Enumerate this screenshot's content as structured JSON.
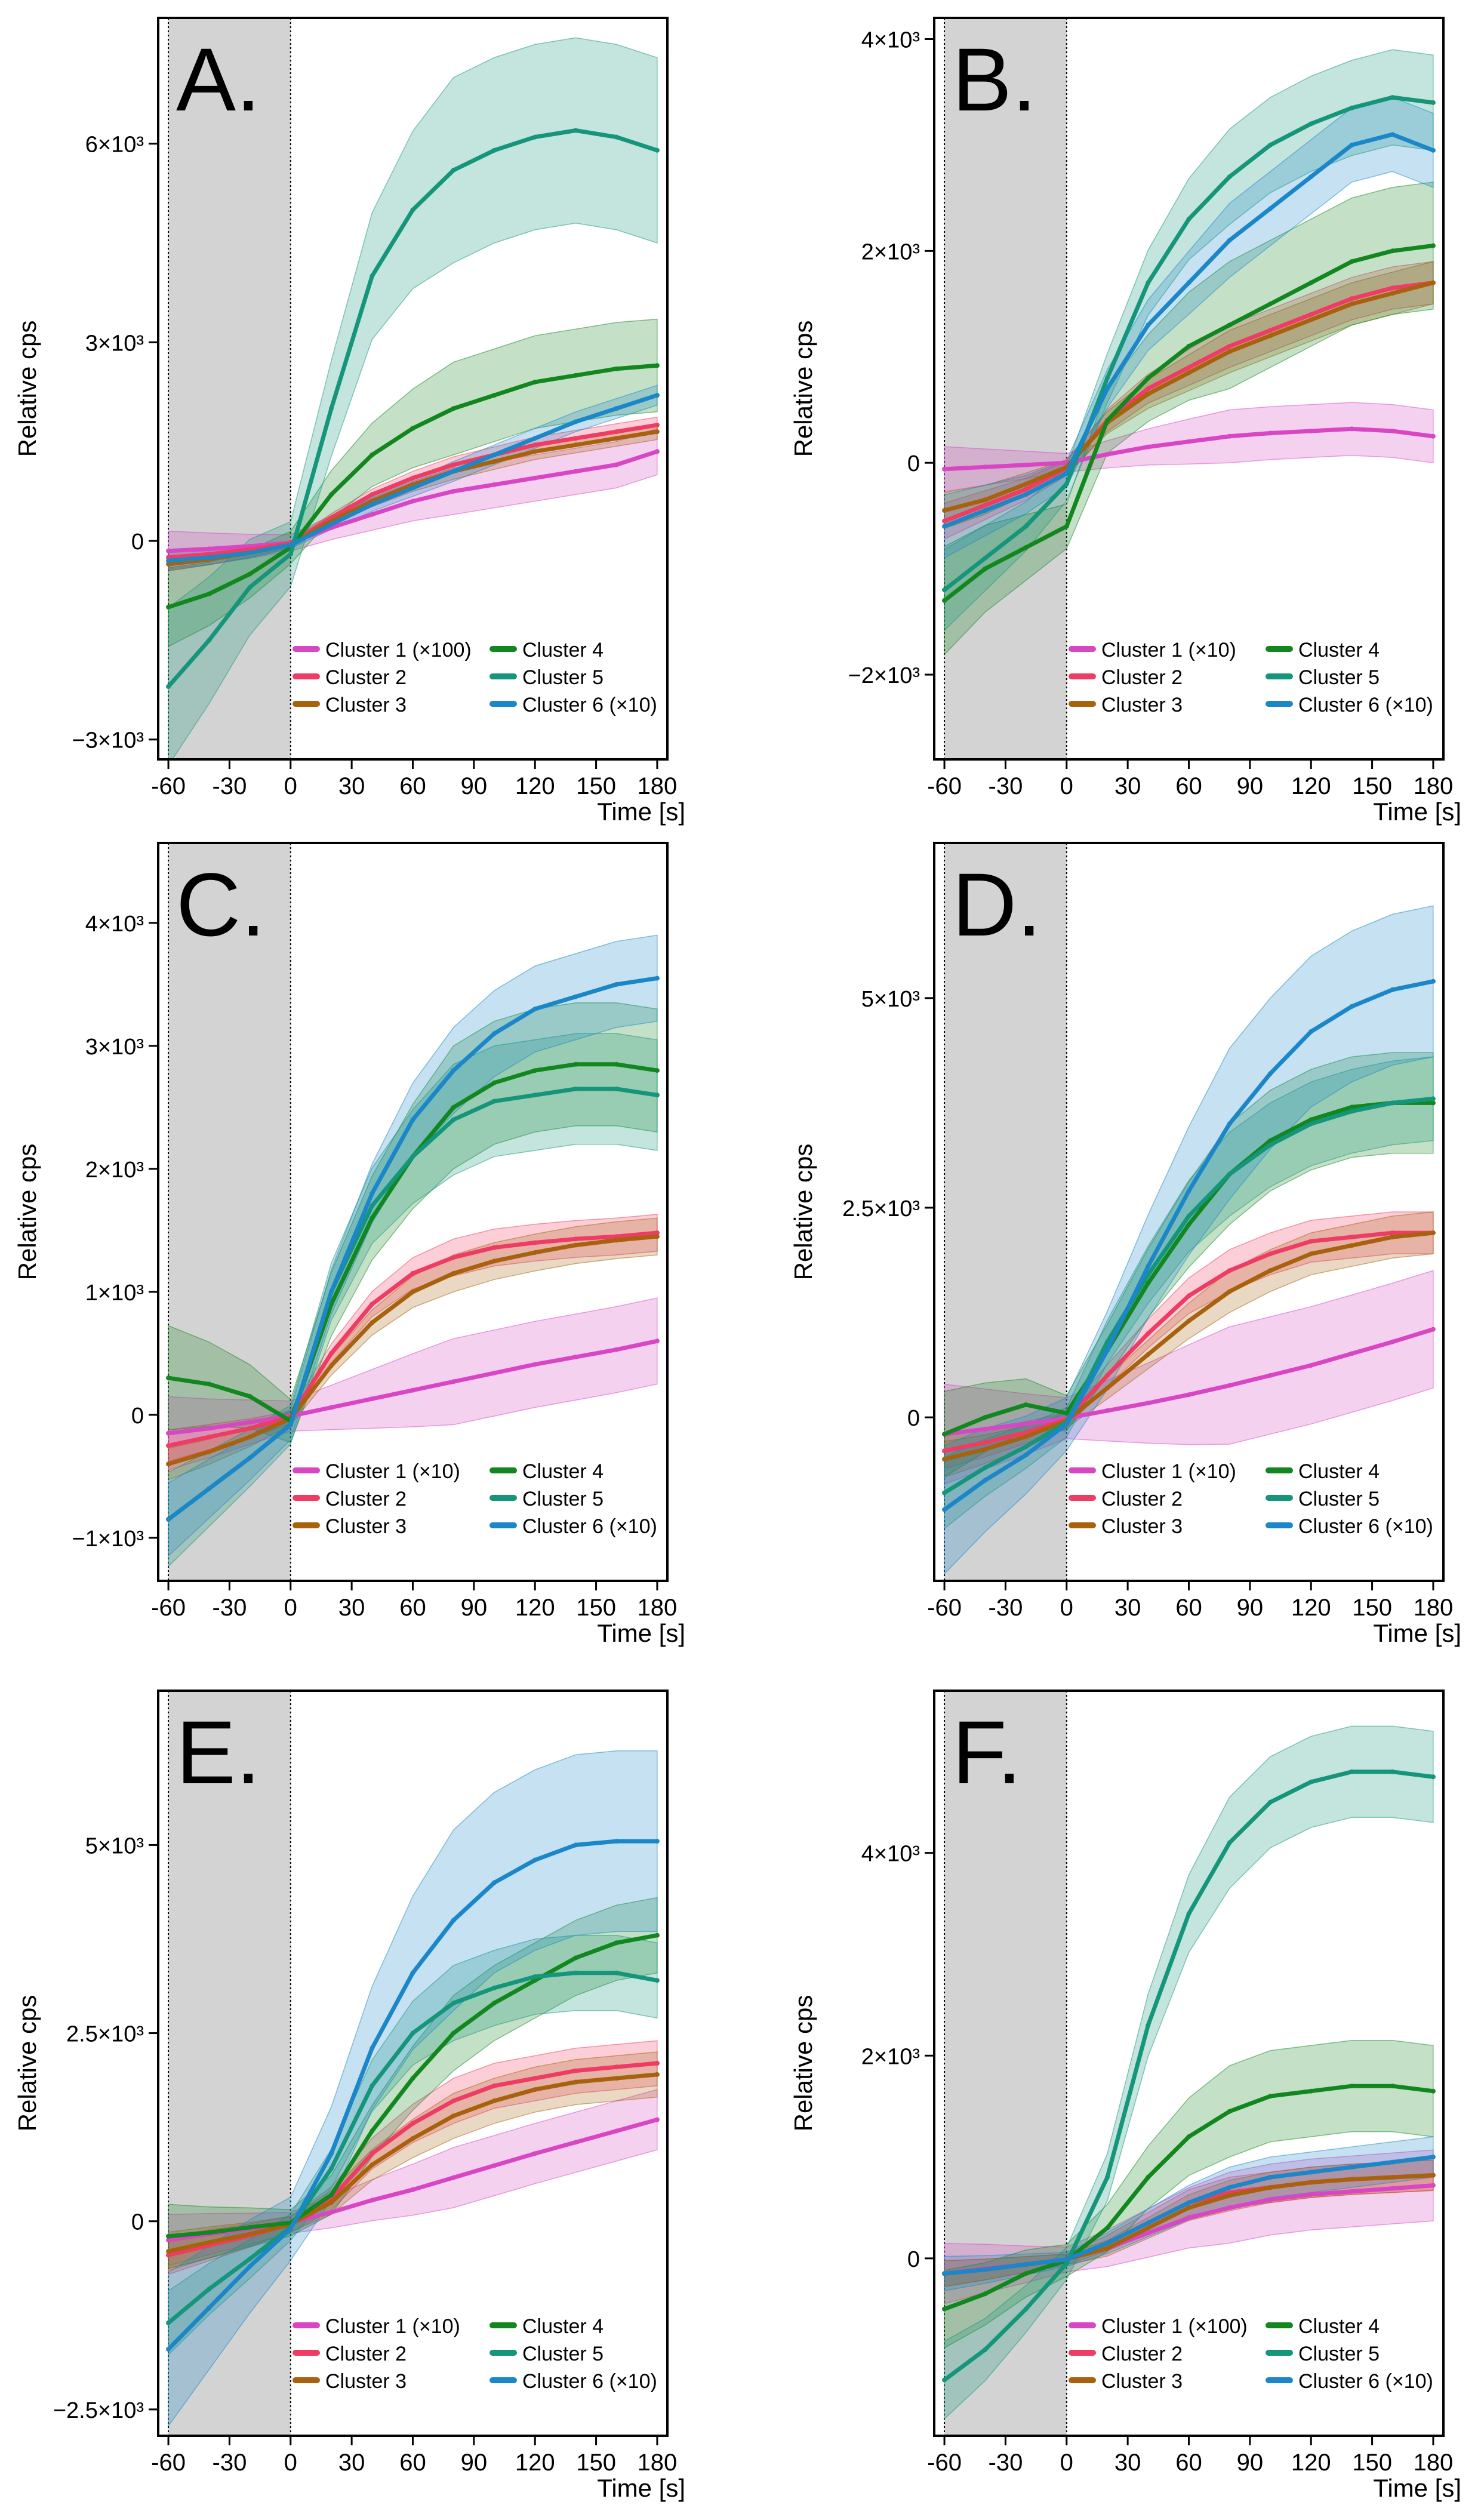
{
  "chart_data": [
    {
      "panel_label": "A.",
      "type": "line",
      "ylabel": "Relative cps",
      "xlabel": "Time [s]",
      "x_ticks": [
        "-60",
        "-30",
        "0",
        "30",
        "60",
        "90",
        "120",
        "150",
        "180"
      ],
      "x_tick_values": [
        -60,
        -30,
        0,
        30,
        60,
        90,
        120,
        150,
        180
      ],
      "xlim": [
        -65,
        185
      ],
      "y_ticks": [
        "−3×10³",
        "0",
        "3×10³",
        "6×10³"
      ],
      "y_tick_values": [
        -3000,
        0,
        3000,
        6000
      ],
      "ylim": [
        -3300,
        7900
      ],
      "shaded_region": [
        -60,
        0
      ],
      "legend_placement": "bottom-center",
      "x": [
        -60,
        -40,
        -20,
        0,
        20,
        40,
        60,
        80,
        100,
        120,
        140,
        160,
        180
      ],
      "series": [
        {
          "name": "Cluster 1 (×100)",
          "color": "#d946c4",
          "values": [
            -150,
            -120,
            -80,
            -30,
            200,
            400,
            600,
            750,
            850,
            950,
            1050,
            1150,
            1350
          ],
          "band": 350
        },
        {
          "name": "Cluster 2",
          "color": "#ee3c64",
          "values": [
            -250,
            -200,
            -130,
            -40,
            350,
            700,
            950,
            1150,
            1300,
            1450,
            1550,
            1650,
            1750
          ],
          "band": 120
        },
        {
          "name": "Cluster 3",
          "color": "#a8620e",
          "values": [
            -350,
            -280,
            -180,
            -60,
            300,
            600,
            850,
            1050,
            1200,
            1350,
            1450,
            1550,
            1650
          ],
          "band": 120
        },
        {
          "name": "Cluster 4",
          "color": "#13871f",
          "values": [
            -1000,
            -800,
            -500,
            -100,
            700,
            1300,
            1700,
            2000,
            2200,
            2400,
            2500,
            2600,
            2650
          ],
          "band": 700
        },
        {
          "name": "Cluster 5",
          "color": "#15957a",
          "values": [
            -2200,
            -1500,
            -700,
            -200,
            2000,
            4000,
            5000,
            5600,
            5900,
            6100,
            6200,
            6100,
            5900
          ],
          "band": 1400
        },
        {
          "name": "Cluster 6 (×10)",
          "color": "#1b86c8",
          "values": [
            -300,
            -250,
            -180,
            -60,
            250,
            550,
            800,
            1050,
            1300,
            1550,
            1800,
            2000,
            2200
          ],
          "band": 150
        }
      ]
    },
    {
      "panel_label": "B.",
      "type": "line",
      "ylabel": "Relative cps",
      "xlabel": "Time [s]",
      "x_ticks": [
        "-60",
        "-30",
        "0",
        "30",
        "60",
        "90",
        "120",
        "150",
        "180"
      ],
      "x_tick_values": [
        -60,
        -30,
        0,
        30,
        60,
        90,
        120,
        150,
        180
      ],
      "xlim": [
        -65,
        185
      ],
      "y_ticks": [
        "−2×10³",
        "0",
        "2×10³",
        "4×10³"
      ],
      "y_tick_values": [
        -2000,
        0,
        2000,
        4000
      ],
      "ylim": [
        -2800,
        4200
      ],
      "shaded_region": [
        -60,
        0
      ],
      "legend_placement": "bottom-center",
      "x": [
        -60,
        -40,
        -20,
        0,
        20,
        40,
        60,
        80,
        100,
        120,
        140,
        160,
        180
      ],
      "series": [
        {
          "name": "Cluster 1 (×10)",
          "color": "#d946c4",
          "values": [
            -60,
            -40,
            -20,
            0,
            80,
            150,
            200,
            250,
            280,
            300,
            320,
            300,
            250
          ],
          "band": 250
        },
        {
          "name": "Cluster 2",
          "color": "#ee3c64",
          "values": [
            -550,
            -400,
            -250,
            -50,
            400,
            700,
            900,
            1100,
            1250,
            1400,
            1550,
            1650,
            1700
          ],
          "band": 200
        },
        {
          "name": "Cluster 3",
          "color": "#a8620e",
          "values": [
            -450,
            -350,
            -200,
            -40,
            380,
            650,
            850,
            1050,
            1200,
            1350,
            1500,
            1600,
            1700
          ],
          "band": 200
        },
        {
          "name": "Cluster 4",
          "color": "#13871f",
          "values": [
            -1300,
            -1000,
            -800,
            -600,
            400,
            800,
            1100,
            1300,
            1500,
            1700,
            1900,
            2000,
            2050
          ],
          "band": 600
        },
        {
          "name": "Cluster 5",
          "color": "#15957a",
          "values": [
            -1200,
            -900,
            -600,
            -200,
            800,
            1700,
            2300,
            2700,
            3000,
            3200,
            3350,
            3450,
            3400
          ],
          "band": 450
        },
        {
          "name": "Cluster 6 (×10)",
          "color": "#1b86c8",
          "values": [
            -600,
            -450,
            -300,
            -100,
            700,
            1300,
            1700,
            2100,
            2400,
            2700,
            3000,
            3100,
            2950
          ],
          "band": 350
        }
      ]
    },
    {
      "panel_label": "C.",
      "type": "line",
      "ylabel": "Relative cps",
      "xlabel": "Time [s]",
      "x_ticks": [
        "-60",
        "-30",
        "0",
        "30",
        "60",
        "90",
        "120",
        "150",
        "180"
      ],
      "x_tick_values": [
        -60,
        -30,
        0,
        30,
        60,
        90,
        120,
        150,
        180
      ],
      "xlim": [
        -65,
        185
      ],
      "y_ticks": [
        "−1×10³",
        "0",
        "1×10³",
        "2×10³",
        "3×10³",
        "4×10³"
      ],
      "y_tick_values": [
        -1000,
        0,
        1000,
        2000,
        3000,
        4000
      ],
      "ylim": [
        -1350,
        4650
      ],
      "shaded_region": [
        -60,
        0
      ],
      "legend_placement": "bottom-center",
      "x": [
        -60,
        -40,
        -20,
        0,
        20,
        40,
        60,
        80,
        100,
        120,
        140,
        160,
        180
      ],
      "series": [
        {
          "name": "Cluster 1 (×10)",
          "color": "#d946c4",
          "values": [
            -150,
            -110,
            -60,
            -10,
            60,
            130,
            200,
            270,
            340,
            410,
            470,
            530,
            600
          ],
          "band": 350
        },
        {
          "name": "Cluster 2",
          "color": "#ee3c64",
          "values": [
            -250,
            -180,
            -110,
            -20,
            500,
            900,
            1150,
            1280,
            1360,
            1400,
            1430,
            1450,
            1480
          ],
          "band": 150
        },
        {
          "name": "Cluster 3",
          "color": "#a8620e",
          "values": [
            -400,
            -300,
            -180,
            -30,
            400,
            750,
            1000,
            1150,
            1250,
            1320,
            1380,
            1420,
            1450
          ],
          "band": 150
        },
        {
          "name": "Cluster 4",
          "color": "#13871f",
          "values": [
            300,
            250,
            150,
            -50,
            900,
            1600,
            2100,
            2500,
            2700,
            2800,
            2850,
            2850,
            2800
          ],
          "band": 500
        },
        {
          "name": "Cluster 5",
          "color": "#15957a",
          "values": [
            -850,
            -600,
            -350,
            -80,
            1000,
            1700,
            2100,
            2400,
            2550,
            2600,
            2650,
            2650,
            2600
          ],
          "band": 450
        },
        {
          "name": "Cluster 6 (×10)",
          "color": "#1b86c8",
          "values": [
            -850,
            -600,
            -350,
            -80,
            1000,
            1800,
            2400,
            2800,
            3100,
            3300,
            3400,
            3500,
            3550
          ],
          "band": 350
        }
      ]
    },
    {
      "panel_label": "D.",
      "type": "line",
      "ylabel": "Relative cps",
      "xlabel": "Time [s]",
      "x_ticks": [
        "-60",
        "-30",
        "0",
        "30",
        "60",
        "90",
        "120",
        "150",
        "180"
      ],
      "x_tick_values": [
        -60,
        -30,
        0,
        30,
        60,
        90,
        120,
        150,
        180
      ],
      "xlim": [
        -65,
        185
      ],
      "y_ticks": [
        "0",
        "2.5×10³",
        "5×10³"
      ],
      "y_tick_values": [
        0,
        2500,
        5000
      ],
      "ylim": [
        -1950,
        6850
      ],
      "shaded_region": [
        -60,
        0
      ],
      "legend_placement": "bottom-center",
      "x": [
        -60,
        -40,
        -20,
        0,
        20,
        40,
        60,
        80,
        100,
        120,
        140,
        160,
        180
      ],
      "series": [
        {
          "name": "Cluster 1 (×10)",
          "color": "#d946c4",
          "values": [
            -200,
            -140,
            -80,
            -10,
            80,
            170,
            270,
            380,
            500,
            620,
            760,
            900,
            1050
          ],
          "band": 700
        },
        {
          "name": "Cluster 2",
          "color": "#ee3c64",
          "values": [
            -400,
            -300,
            -180,
            -30,
            500,
            1000,
            1450,
            1750,
            1950,
            2100,
            2150,
            2200,
            2200
          ],
          "band": 250
        },
        {
          "name": "Cluster 3",
          "color": "#a8620e",
          "values": [
            -500,
            -380,
            -230,
            -40,
            350,
            750,
            1150,
            1500,
            1750,
            1950,
            2050,
            2150,
            2200
          ],
          "band": 250
        },
        {
          "name": "Cluster 4",
          "color": "#13871f",
          "values": [
            -200,
            0,
            150,
            50,
            800,
            1600,
            2300,
            2900,
            3300,
            3550,
            3700,
            3750,
            3750
          ],
          "band": 600
        },
        {
          "name": "Cluster 5",
          "color": "#15957a",
          "values": [
            -900,
            -600,
            -350,
            -60,
            900,
            1700,
            2400,
            2900,
            3250,
            3500,
            3650,
            3750,
            3800
          ],
          "band": 500
        },
        {
          "name": "Cluster 6 (×10)",
          "color": "#1b86c8",
          "values": [
            -1100,
            -750,
            -450,
            -80,
            800,
            1800,
            2700,
            3500,
            4100,
            4600,
            4900,
            5100,
            5200
          ],
          "band": 900
        }
      ]
    },
    {
      "panel_label": "E.",
      "type": "line",
      "ylabel": "Relative cps",
      "xlabel": "Time [s]",
      "x_ticks": [
        "-60",
        "-30",
        "0",
        "30",
        "60",
        "90",
        "120",
        "150",
        "180"
      ],
      "x_tick_values": [
        -60,
        -30,
        0,
        30,
        60,
        90,
        120,
        150,
        180
      ],
      "xlim": [
        -65,
        185
      ],
      "y_ticks": [
        "−2.5×10³",
        "0",
        "2.5×10³",
        "5×10³"
      ],
      "y_tick_values": [
        -2500,
        0,
        2500,
        5000
      ],
      "ylim": [
        -2850,
        7050
      ],
      "shaded_region": [
        -60,
        0
      ],
      "legend_placement": "bottom-center",
      "x": [
        -60,
        -40,
        -20,
        0,
        20,
        40,
        60,
        80,
        100,
        120,
        140,
        160,
        180
      ],
      "series": [
        {
          "name": "Cluster 1 (×10)",
          "color": "#d946c4",
          "values": [
            -250,
            -170,
            -100,
            -20,
            120,
            280,
            420,
            580,
            740,
            900,
            1050,
            1200,
            1350
          ],
          "band": 400
        },
        {
          "name": "Cluster 2",
          "color": "#ee3c64",
          "values": [
            -450,
            -320,
            -190,
            -40,
            300,
            900,
            1300,
            1600,
            1800,
            1900,
            2000,
            2050,
            2100
          ],
          "band": 300
        },
        {
          "name": "Cluster 3",
          "color": "#a8620e",
          "values": [
            -400,
            -280,
            -170,
            -40,
            250,
            750,
            1100,
            1400,
            1600,
            1750,
            1850,
            1900,
            1950
          ],
          "band": 300
        },
        {
          "name": "Cluster 4",
          "color": "#13871f",
          "values": [
            -200,
            -150,
            -80,
            -20,
            350,
            1200,
            1900,
            2500,
            2900,
            3200,
            3500,
            3700,
            3800
          ],
          "band": 500
        },
        {
          "name": "Cluster 5",
          "color": "#15957a",
          "values": [
            -1350,
            -900,
            -500,
            -80,
            700,
            1800,
            2500,
            2900,
            3100,
            3250,
            3300,
            3300,
            3200
          ],
          "band": 500
        },
        {
          "name": "Cluster 6 (×10)",
          "color": "#1b86c8",
          "values": [
            -1700,
            -1150,
            -600,
            -100,
            900,
            2300,
            3300,
            4000,
            4500,
            4800,
            5000,
            5050,
            5050
          ],
          "band": 1200
        }
      ]
    },
    {
      "panel_label": "F.",
      "type": "line",
      "ylabel": "Relative cps",
      "xlabel": "Time [s]",
      "x_ticks": [
        "-60",
        "-30",
        "0",
        "30",
        "60",
        "90",
        "120",
        "150",
        "180"
      ],
      "x_tick_values": [
        -60,
        -30,
        0,
        30,
        60,
        90,
        120,
        150,
        180
      ],
      "xlim": [
        -65,
        185
      ],
      "y_ticks": [
        "0",
        "2×10³",
        "4×10³"
      ],
      "y_tick_values": [
        0,
        2000,
        4000
      ],
      "ylim": [
        -1750,
        5600
      ],
      "shaded_region": [
        -60,
        0
      ],
      "legend_placement": "bottom-center",
      "x": [
        -60,
        -40,
        -20,
        0,
        20,
        40,
        60,
        80,
        100,
        120,
        140,
        160,
        180
      ],
      "series": [
        {
          "name": "Cluster 1 (×100)",
          "color": "#d946c4",
          "values": [
            -150,
            -100,
            -60,
            -10,
            100,
            250,
            400,
            500,
            580,
            630,
            660,
            690,
            720
          ],
          "band": 350
        },
        {
          "name": "Cluster 2",
          "color": "#ee3c64",
          "values": [
            -150,
            -110,
            -60,
            -10,
            150,
            350,
            550,
            650,
            700,
            750,
            780,
            800,
            820
          ],
          "band": 150
        },
        {
          "name": "Cluster 3",
          "color": "#a8620e",
          "values": [
            -150,
            -110,
            -60,
            -10,
            100,
            300,
            500,
            620,
            700,
            750,
            780,
            800,
            820
          ],
          "band": 150
        },
        {
          "name": "Cluster 4",
          "color": "#13871f",
          "values": [
            -500,
            -350,
            -150,
            -20,
            300,
            800,
            1200,
            1450,
            1600,
            1650,
            1700,
            1700,
            1650
          ],
          "band": 450
        },
        {
          "name": "Cluster 5",
          "color": "#15957a",
          "values": [
            -1200,
            -900,
            -500,
            -50,
            800,
            2300,
            3400,
            4100,
            4500,
            4700,
            4800,
            4800,
            4750
          ],
          "band": 450
        },
        {
          "name": "Cluster 6 (×10)",
          "color": "#1b86c8",
          "values": [
            -150,
            -110,
            -60,
            -10,
            150,
            350,
            550,
            700,
            800,
            850,
            900,
            950,
            1000
          ],
          "band": 200
        }
      ]
    }
  ]
}
